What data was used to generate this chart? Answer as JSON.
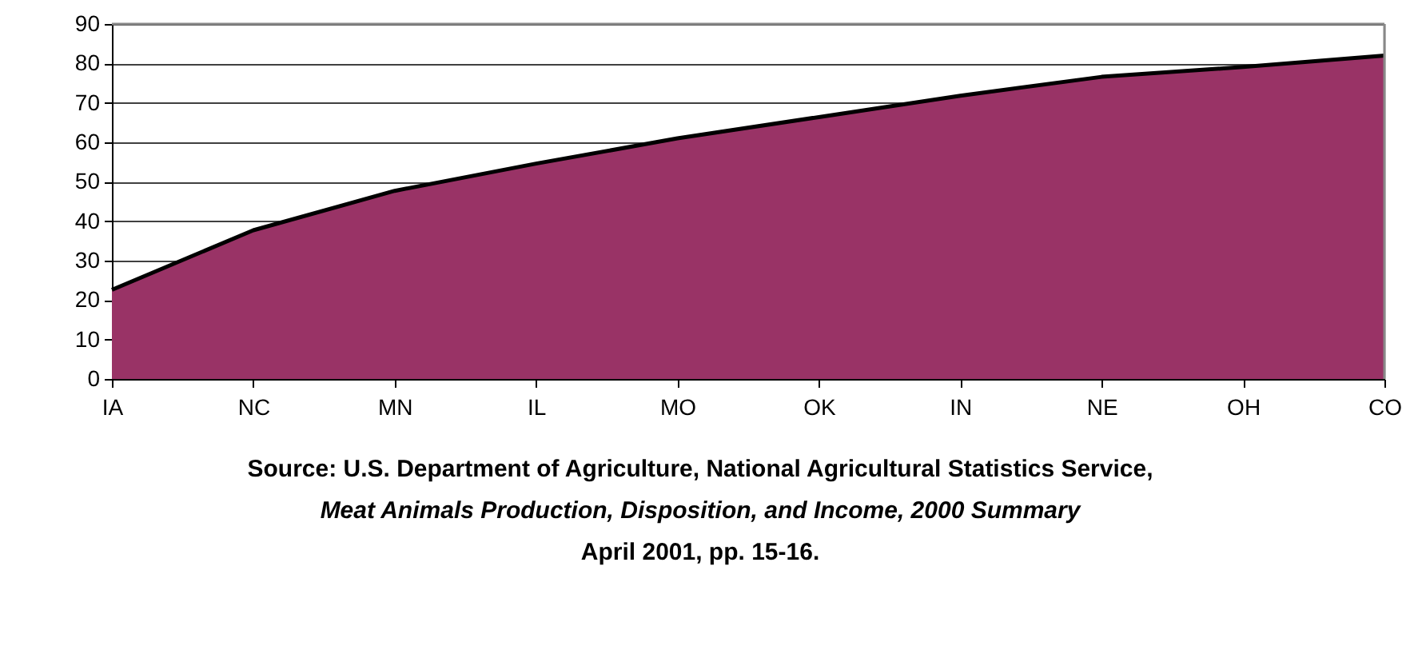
{
  "chart_data": {
    "type": "area",
    "categories": [
      "IA",
      "NC",
      "MN",
      "IL",
      "MO",
      "OK",
      "IN",
      "NE",
      "OH",
      "CO"
    ],
    "series": [
      {
        "color": "#993366",
        "values": [
          22.6,
          37.7,
          47.7,
          54.6,
          61.0,
          66.4,
          71.8,
          76.6,
          79.1,
          82.0
        ]
      }
    ],
    "ylim": [
      0,
      90
    ],
    "yticks": [
      0,
      10,
      20,
      30,
      40,
      50,
      60,
      70,
      80,
      90
    ],
    "grid": "y",
    "annotations": [
      "Source:  U.S. Department of Agriculture, National Agricultural Statistics Service,",
      "Meat Animals Production, Disposition, and Income, 2000 Summary",
      "April 2001, pp. 15-16."
    ]
  }
}
